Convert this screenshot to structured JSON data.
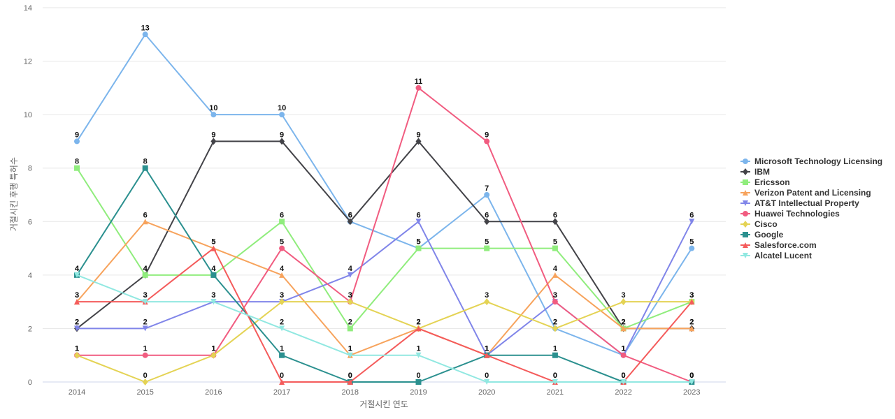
{
  "chart_data": {
    "type": "line",
    "title": "",
    "xlabel": "거절시킨 연도",
    "ylabel": "거절시킨 후행 특허수",
    "x": [
      "2014",
      "2015",
      "2016",
      "2017",
      "2018",
      "2019",
      "2020",
      "2021",
      "2022",
      "2023"
    ],
    "ylim": [
      0,
      14
    ],
    "yticks": [
      0,
      2,
      4,
      6,
      8,
      10,
      12,
      14
    ],
    "grid": true,
    "legend_position": "right",
    "series": [
      {
        "name": "Microsoft Technology Licensing",
        "color": "#7cb5ec",
        "marker": "circle",
        "values": [
          9,
          13,
          10,
          10,
          6,
          5,
          7,
          2,
          1,
          5
        ]
      },
      {
        "name": "IBM",
        "color": "#434348",
        "marker": "diamond",
        "values": [
          2,
          4,
          9,
          9,
          6,
          9,
          6,
          6,
          2,
          2
        ]
      },
      {
        "name": "Ericsson",
        "color": "#90ed7d",
        "marker": "square",
        "values": [
          8,
          4,
          4,
          6,
          2,
          5,
          5,
          5,
          2,
          3
        ]
      },
      {
        "name": "Verizon Patent and Licensing",
        "color": "#f7a35c",
        "marker": "triangle",
        "values": [
          3,
          6,
          5,
          4,
          1,
          2,
          1,
          4,
          2,
          2
        ]
      },
      {
        "name": "AT&T Intellectual Property",
        "color": "#8085e9",
        "marker": "triangle-down",
        "values": [
          2,
          2,
          3,
          3,
          4,
          6,
          1,
          3,
          1,
          6
        ]
      },
      {
        "name": "Huawei Technologies",
        "color": "#f15c80",
        "marker": "circle",
        "values": [
          1,
          1,
          1,
          5,
          3,
          11,
          9,
          3,
          1,
          0
        ]
      },
      {
        "name": "Cisco",
        "color": "#e4d354",
        "marker": "diamond",
        "values": [
          1,
          0,
          1,
          3,
          3,
          2,
          3,
          2,
          3,
          3
        ]
      },
      {
        "name": "Google",
        "color": "#2b908f",
        "marker": "square",
        "values": [
          4,
          8,
          4,
          1,
          0,
          0,
          1,
          1,
          0,
          0
        ]
      },
      {
        "name": "Salesforce.com",
        "color": "#f45b5b",
        "marker": "triangle",
        "values": [
          3,
          3,
          5,
          0,
          0,
          2,
          1,
          0,
          0,
          3
        ]
      },
      {
        "name": "Alcatel Lucent",
        "color": "#91e8e1",
        "marker": "triangle-down",
        "values": [
          4,
          3,
          3,
          2,
          1,
          1,
          0,
          0,
          0,
          0
        ]
      }
    ]
  }
}
